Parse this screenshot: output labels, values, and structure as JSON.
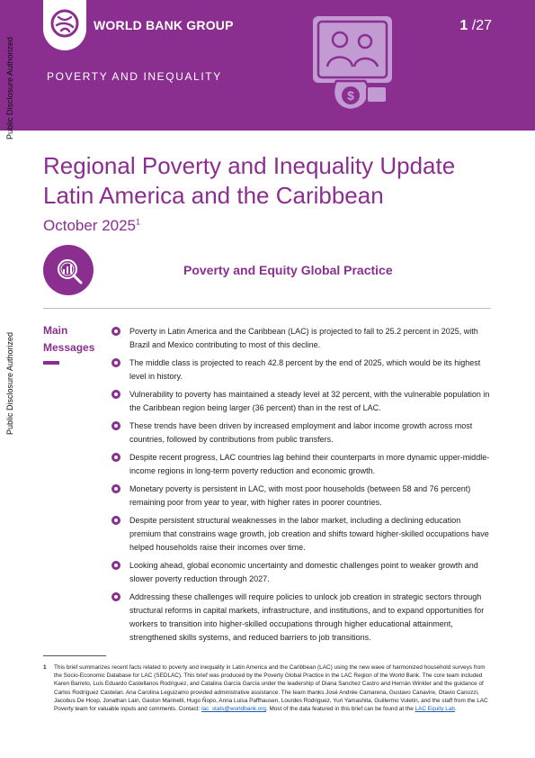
{
  "header": {
    "org_name": "WORLD BANK GROUP",
    "page_current": "1",
    "page_total": "/27",
    "section": "POVERTY AND INEQUALITY",
    "side_note": "Public Disclosure Authorized"
  },
  "title": {
    "main": "Regional Poverty and Inequality Update Latin America and the Caribbean",
    "date": "October 2025",
    "date_footnote_ref": "1",
    "practice": "Poverty and Equity Global Practice"
  },
  "main_messages": {
    "label": "Main Messages",
    "items": [
      "Poverty in Latin America and the Caribbean (LAC) is projected to fall to 25.2 percent in 2025, with Brazil and Mexico contributing to most of this decline.",
      "The middle class is projected to reach 42.8 percent by the end of 2025, which would be its highest level in history.",
      "Vulnerability to poverty has maintained a steady level at 32 percent, with the vulnerable population in the Caribbean region being larger (36 percent) than in the rest of LAC.",
      "These trends have been driven by increased employment and labor income growth across most countries, followed by contributions from public transfers.",
      "Despite recent progress, LAC countries lag behind their counterparts in more dynamic upper-middle-income regions in long-term poverty reduction and economic growth.",
      "Monetary poverty is persistent in LAC, with most poor households (between 58 and 76 percent) remaining poor from year to year, with higher rates in poorer countries.",
      "Despite persistent structural weaknesses in the labor market, including a declining education premium that constrains wage growth, job creation and shifts toward higher-skilled occupations have helped households raise their incomes over time.",
      "Looking ahead, global economic uncertainty and domestic challenges point to weaker growth and slower poverty reduction through 2027.",
      "Addressing these challenges will require policies to unlock job creation in strategic sectors through structural reforms in capital markets, infrastructure, and institutions, and to expand opportunities for workers to transition into higher-skilled occupations through higher educational attainment, strengthened skills systems, and reduced barriers to job transitions."
    ]
  },
  "footnote": {
    "number": "1",
    "text": "This brief summarizes recent facts related to poverty and inequality in Latin America and the Caribbean (LAC) using the new wave of harmonized household surveys from the Socio-Economic Database for LAC (SEDLAC). This brief was produced by the Poverty Global Practice in the LAC Region of the World Bank. The core team included Karen Barreto, Luis Eduardo Castellanos Rodríguez, and Catalina García García under the leadership of Diana Sanchez Castro and Hernán Winkler and the guidance of Carlos Rodríguez Castelan. Ana Carolina Leguizamo provided administrative assistance. The team thanks José Andrée Camarena, Gustavo Canavire, Otavio Canozzi, Jacobus De Hoop, Jonathan Lain, Gaston Marinelli, Hugo Ñopo, Anna Luisa Paffhausen, Lourdes Rodriguez, Yuri Yamashita, Guillermo Vuletin, and the staff from the LAC Poverty team for valuable inputs and comments. Contact:",
    "contact_email": "lac_stats@worldbank.org",
    "text_after_email": ". Most of the data featured in this brief can be found at the",
    "link_text": "LAC Equity Lab",
    "text_end": "."
  },
  "colors": {
    "brand_purple": "#8a2f8f",
    "illustration_lilac": "#c39bd3",
    "link_blue": "#1a5fb4"
  }
}
